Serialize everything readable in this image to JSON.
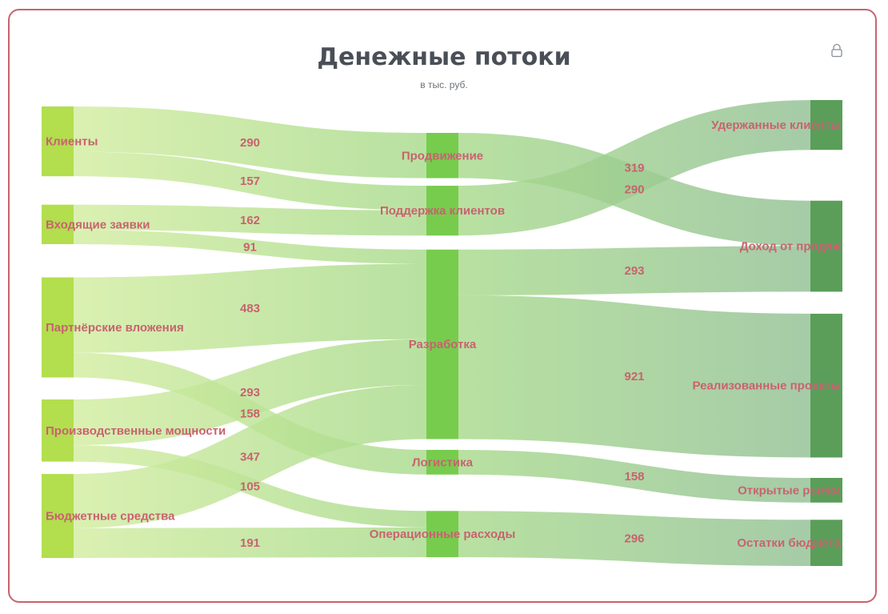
{
  "header": {
    "title": "Денежные потоки",
    "subtitle": "в тыс. руб.",
    "lock_icon": "lock-icon"
  },
  "colors": {
    "border": "#c9626f",
    "label": "#c9626f",
    "source_node": "#b3de4e",
    "mid_node": "#77cc4e",
    "target_node": "#5a9e5a",
    "link_start": "#d2eda0",
    "link_mid": "#a8da8c",
    "link_end": "#92c094"
  },
  "chart_data": {
    "type": "sankey",
    "title": "Денежные потоки",
    "subtitle": "в тыс. руб.",
    "nodes": [
      {
        "id": "clients",
        "name": "Клиенты",
        "column": 0
      },
      {
        "id": "leads",
        "name": "Входящие заявки",
        "column": 0
      },
      {
        "id": "partners",
        "name": "Партнёрские вложения",
        "column": 0
      },
      {
        "id": "capacity",
        "name": "Производственные мощности",
        "column": 0
      },
      {
        "id": "budget",
        "name": "Бюджетные средства",
        "column": 0
      },
      {
        "id": "promo",
        "name": "Продвижение",
        "column": 1
      },
      {
        "id": "support",
        "name": "Поддержка клиентов",
        "column": 1
      },
      {
        "id": "dev",
        "name": "Разработка",
        "column": 1
      },
      {
        "id": "logistics",
        "name": "Логистика",
        "column": 1
      },
      {
        "id": "opex",
        "name": "Операционные расходы",
        "column": 1
      },
      {
        "id": "retained",
        "name": "Удержанные клиенты",
        "column": 2
      },
      {
        "id": "income",
        "name": "Доход от продаж",
        "column": 2
      },
      {
        "id": "projects",
        "name": "Реализованные проекты",
        "column": 2
      },
      {
        "id": "markets",
        "name": "Открытые рынки",
        "column": 2
      },
      {
        "id": "remains",
        "name": "Остатки бюджета",
        "column": 2
      }
    ],
    "links": [
      {
        "source": "clients",
        "target": "promo",
        "value": 290
      },
      {
        "source": "clients",
        "target": "support",
        "value": 157
      },
      {
        "source": "leads",
        "target": "support",
        "value": 162
      },
      {
        "source": "leads",
        "target": "dev",
        "value": 91
      },
      {
        "source": "partners",
        "target": "dev",
        "value": 483
      },
      {
        "source": "partners",
        "target": "logistics",
        "value": 158
      },
      {
        "source": "capacity",
        "target": "dev",
        "value": 293
      },
      {
        "source": "capacity",
        "target": "opex",
        "value": 105
      },
      {
        "source": "budget",
        "target": "dev",
        "value": 347
      },
      {
        "source": "budget",
        "target": "opex",
        "value": 191
      },
      {
        "source": "promo",
        "target": "income",
        "value": 290
      },
      {
        "source": "support",
        "target": "retained",
        "value": 319
      },
      {
        "source": "dev",
        "target": "income",
        "value": 293
      },
      {
        "source": "dev",
        "target": "projects",
        "value": 921
      },
      {
        "source": "logistics",
        "target": "markets",
        "value": 158
      },
      {
        "source": "opex",
        "target": "remains",
        "value": 296
      }
    ]
  }
}
